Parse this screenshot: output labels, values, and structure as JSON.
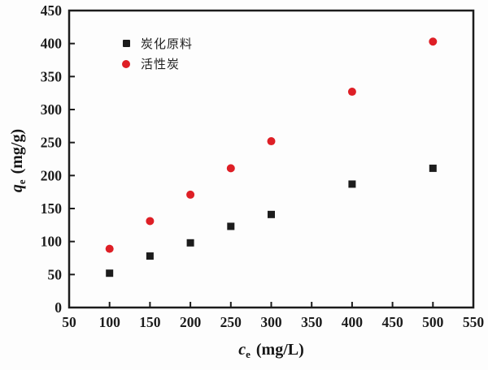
{
  "figure": {
    "background": "#fdfdfd",
    "axis_color": "#1c1c1c"
  },
  "chart_data": {
    "type": "scatter",
    "title": "",
    "xlabel_symbol": "c",
    "xlabel_sub": "e",
    "xlabel_unit": " (mg/L)",
    "ylabel_symbol": "q",
    "ylabel_sub": "e",
    "ylabel_unit": " (mg/g)",
    "xlim": [
      50,
      550
    ],
    "ylim": [
      0,
      450
    ],
    "xticks": [
      50,
      100,
      150,
      200,
      250,
      300,
      350,
      400,
      450,
      500,
      550
    ],
    "yticks": [
      0,
      50,
      100,
      150,
      200,
      250,
      300,
      350,
      400,
      450
    ],
    "grid": false,
    "legend_position": "upper-left-inside",
    "series": [
      {
        "name": "炭化原料",
        "marker": "square",
        "color": "#1c1c1c",
        "x": [
          100,
          150,
          200,
          250,
          300,
          400,
          500
        ],
        "y": [
          52,
          78,
          98,
          123,
          141,
          187,
          211
        ]
      },
      {
        "name": "活性炭",
        "marker": "circle",
        "color": "#de1f26",
        "x": [
          100,
          150,
          200,
          250,
          300,
          400,
          500
        ],
        "y": [
          89,
          131,
          171,
          211,
          252,
          327,
          403
        ]
      }
    ]
  }
}
